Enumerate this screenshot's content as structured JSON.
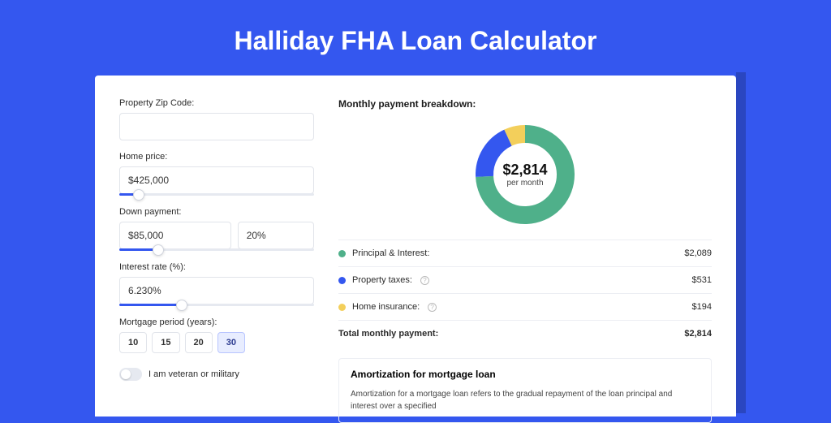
{
  "page": {
    "title": "Halliday FHA Loan Calculator",
    "background_color": "#3457ef",
    "card_background": "#ffffff"
  },
  "form": {
    "zip": {
      "label": "Property Zip Code:",
      "value": ""
    },
    "home_price": {
      "label": "Home price:",
      "value": "$425,000",
      "slider_pct": 10
    },
    "down_payment": {
      "label": "Down payment:",
      "value": "$85,000",
      "pct_value": "20%",
      "slider_pct": 20
    },
    "interest_rate": {
      "label": "Interest rate (%):",
      "value": "6.230%",
      "slider_pct": 32
    },
    "mortgage_period": {
      "label": "Mortgage period (years):",
      "options": [
        "10",
        "15",
        "20",
        "30"
      ],
      "selected": "30"
    },
    "veteran": {
      "label": "I am veteran or military",
      "checked": false
    }
  },
  "breakdown": {
    "title": "Monthly payment breakdown:",
    "center_amount": "$2,814",
    "center_sub": "per month",
    "rows": [
      {
        "label": "Principal & Interest:",
        "value": "$2,089",
        "color": "#4fb08a",
        "help": false
      },
      {
        "label": "Property taxes:",
        "value": "$531",
        "color": "#3457ef",
        "help": true
      },
      {
        "label": "Home insurance:",
        "value": "$194",
        "color": "#f3cf5b",
        "help": true
      }
    ],
    "total": {
      "label": "Total monthly payment:",
      "value": "$2,814"
    }
  },
  "donut": {
    "type": "donut",
    "background": "#ffffff",
    "inner_radius_pct": 56,
    "segments": [
      {
        "color": "#4fb08a",
        "value": 2089
      },
      {
        "color": "#3457ef",
        "value": 531
      },
      {
        "color": "#f3cf5b",
        "value": 194
      }
    ]
  },
  "amortization": {
    "title": "Amortization for mortgage loan",
    "text": "Amortization for a mortgage loan refers to the gradual repayment of the loan principal and interest over a specified"
  }
}
